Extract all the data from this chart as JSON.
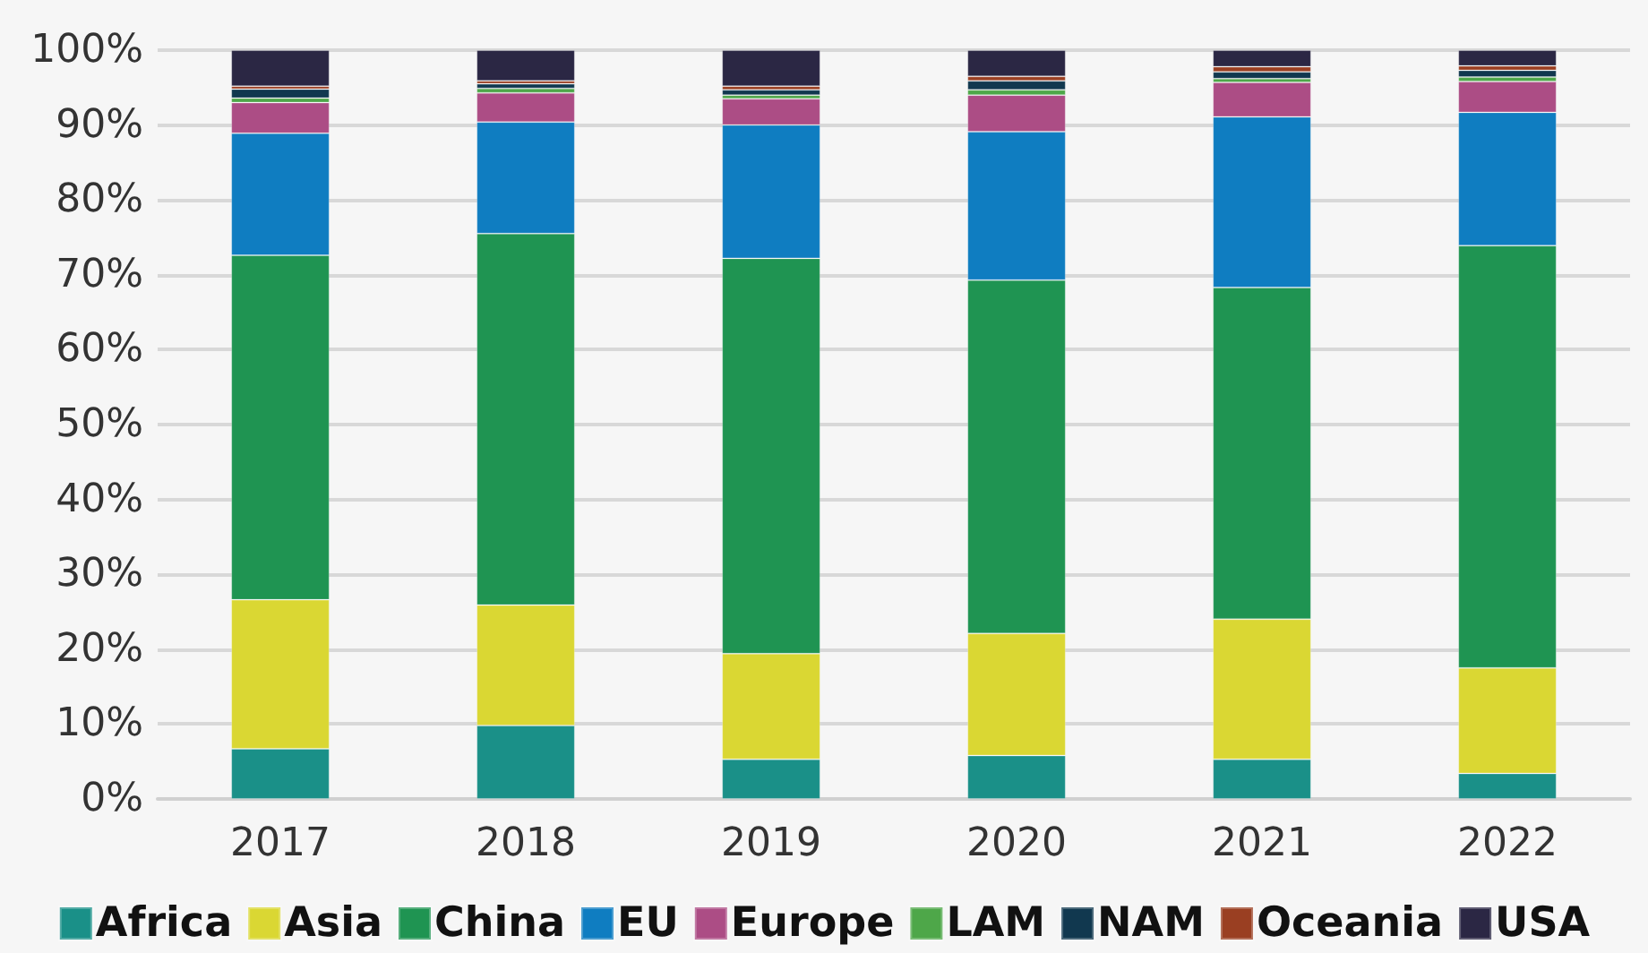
{
  "chart_data": {
    "type": "bar",
    "stacked": true,
    "categories": [
      "2017",
      "2018",
      "2019",
      "2020",
      "2021",
      "2022"
    ],
    "series": [
      {
        "name": "Africa",
        "color": "#1a9088",
        "values": [
          6.7,
          9.8,
          5.3,
          5.8,
          5.3,
          3.4
        ]
      },
      {
        "name": "Asia",
        "color": "#dad733",
        "values": [
          19.9,
          16.1,
          14.1,
          16.3,
          18.7,
          14.1
        ]
      },
      {
        "name": "China",
        "color": "#1f9452",
        "values": [
          46.0,
          49.6,
          52.8,
          47.2,
          44.3,
          56.4
        ]
      },
      {
        "name": "EU",
        "color": "#0f7dc1",
        "values": [
          16.3,
          14.9,
          17.8,
          19.8,
          22.8,
          17.8
        ]
      },
      {
        "name": "Europe",
        "color": "#ac4d85",
        "values": [
          4.1,
          3.9,
          3.5,
          4.9,
          4.6,
          4.1
        ]
      },
      {
        "name": "LAM",
        "color": "#4ea749",
        "values": [
          0.6,
          0.6,
          0.5,
          0.7,
          0.5,
          0.6
        ]
      },
      {
        "name": "NAM",
        "color": "#11384f",
        "values": [
          1.2,
          0.6,
          0.7,
          1.2,
          0.9,
          0.9
        ]
      },
      {
        "name": "Oceania",
        "color": "#9a3f22",
        "values": [
          0.4,
          0.4,
          0.5,
          0.6,
          0.7,
          0.6
        ]
      },
      {
        "name": "USA",
        "color": "#2b2744",
        "values": [
          4.8,
          4.1,
          4.8,
          3.5,
          2.2,
          2.1
        ]
      }
    ],
    "ylim": [
      0,
      100
    ],
    "yticks": [
      {
        "value": 0,
        "label": "0%"
      },
      {
        "value": 10,
        "label": "10%"
      },
      {
        "value": 20,
        "label": "20%"
      },
      {
        "value": 30,
        "label": "30%"
      },
      {
        "value": 40,
        "label": "40%"
      },
      {
        "value": 50,
        "label": "50%"
      },
      {
        "value": 60,
        "label": "60%"
      },
      {
        "value": 70,
        "label": "70%"
      },
      {
        "value": 80,
        "label": "80%"
      },
      {
        "value": 90,
        "label": "90%"
      },
      {
        "value": 100,
        "label": "100%"
      }
    ],
    "grid": "y",
    "legend": "bottom"
  }
}
